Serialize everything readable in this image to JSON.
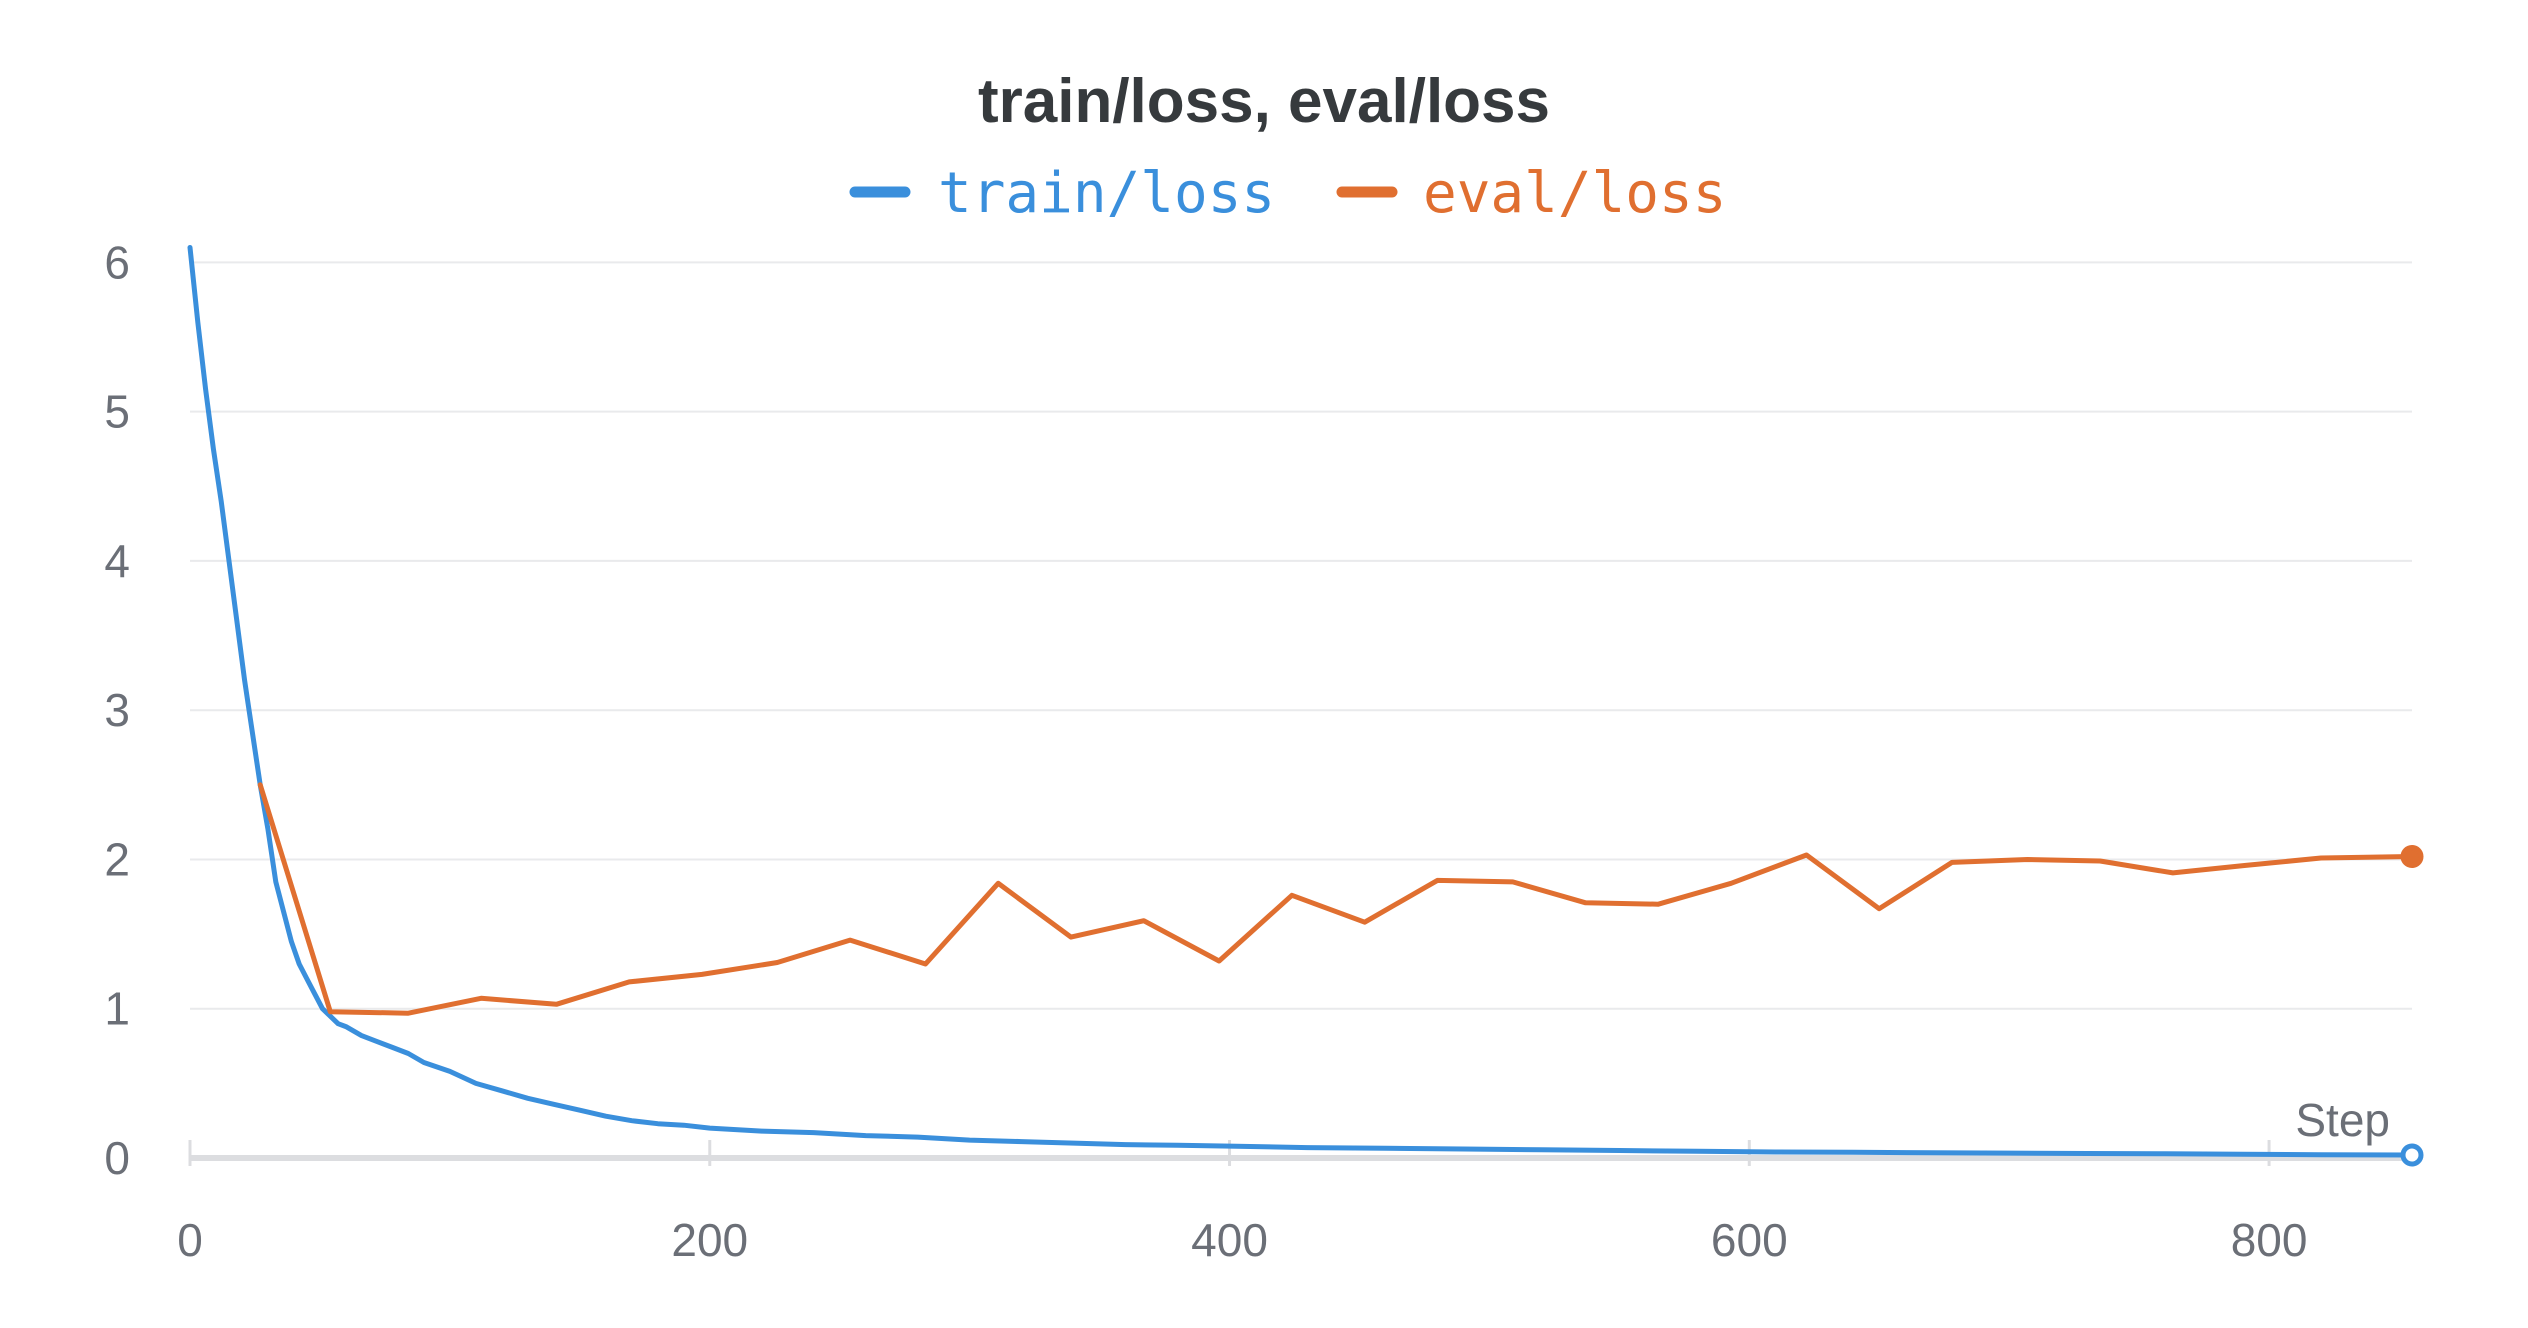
{
  "chart_data": {
    "type": "line",
    "title": "train/loss, eval/loss",
    "xlabel": "Step",
    "ylabel": "",
    "xlim": [
      0,
      855
    ],
    "ylim": [
      0,
      6.15
    ],
    "xticks": [
      0,
      200,
      400,
      600,
      800
    ],
    "yticks": [
      0,
      1,
      2,
      3,
      4,
      5,
      6
    ],
    "grid": true,
    "legend": "top-center",
    "series": [
      {
        "name": "train/loss",
        "color": "#3a8fdc",
        "x": [
          0,
          3,
          6,
          9,
          12,
          15,
          18,
          21,
          24,
          27,
          30,
          33,
          36,
          39,
          42,
          45,
          48,
          51,
          54,
          57,
          60,
          66,
          72,
          78,
          84,
          90,
          100,
          110,
          120,
          130,
          140,
          150,
          160,
          170,
          180,
          190,
          200,
          220,
          240,
          260,
          280,
          300,
          320,
          340,
          360,
          380,
          400,
          430,
          460,
          490,
          520,
          550,
          580,
          610,
          640,
          670,
          700,
          730,
          760,
          790,
          820,
          855
        ],
        "values": [
          6.1,
          5.6,
          5.15,
          4.75,
          4.4,
          4.0,
          3.6,
          3.2,
          2.85,
          2.5,
          2.2,
          1.85,
          1.65,
          1.45,
          1.3,
          1.2,
          1.1,
          1.0,
          0.95,
          0.9,
          0.88,
          0.82,
          0.78,
          0.74,
          0.7,
          0.64,
          0.58,
          0.5,
          0.45,
          0.4,
          0.36,
          0.32,
          0.28,
          0.25,
          0.23,
          0.22,
          0.2,
          0.18,
          0.17,
          0.15,
          0.14,
          0.12,
          0.11,
          0.1,
          0.09,
          0.085,
          0.08,
          0.07,
          0.065,
          0.06,
          0.055,
          0.05,
          0.045,
          0.04,
          0.038,
          0.035,
          0.033,
          0.03,
          0.028,
          0.025,
          0.022,
          0.02
        ]
      },
      {
        "name": "eval/loss",
        "color": "#e06f30",
        "x": [
          27,
          54,
          84,
          112,
          141,
          169,
          197,
          226,
          254,
          283,
          311,
          339,
          367,
          396,
          424,
          452,
          480,
          509,
          537,
          565,
          593,
          622,
          650,
          678,
          707,
          735,
          763,
          791,
          820,
          855
        ],
        "values": [
          2.5,
          0.98,
          0.97,
          1.07,
          1.03,
          1.18,
          1.23,
          1.31,
          1.46,
          1.3,
          1.84,
          1.48,
          1.59,
          1.32,
          1.76,
          1.58,
          1.86,
          1.85,
          1.71,
          1.7,
          1.84,
          2.03,
          1.67,
          1.98,
          2.0,
          1.99,
          1.91,
          1.96,
          2.01,
          2.02
        ]
      }
    ]
  }
}
